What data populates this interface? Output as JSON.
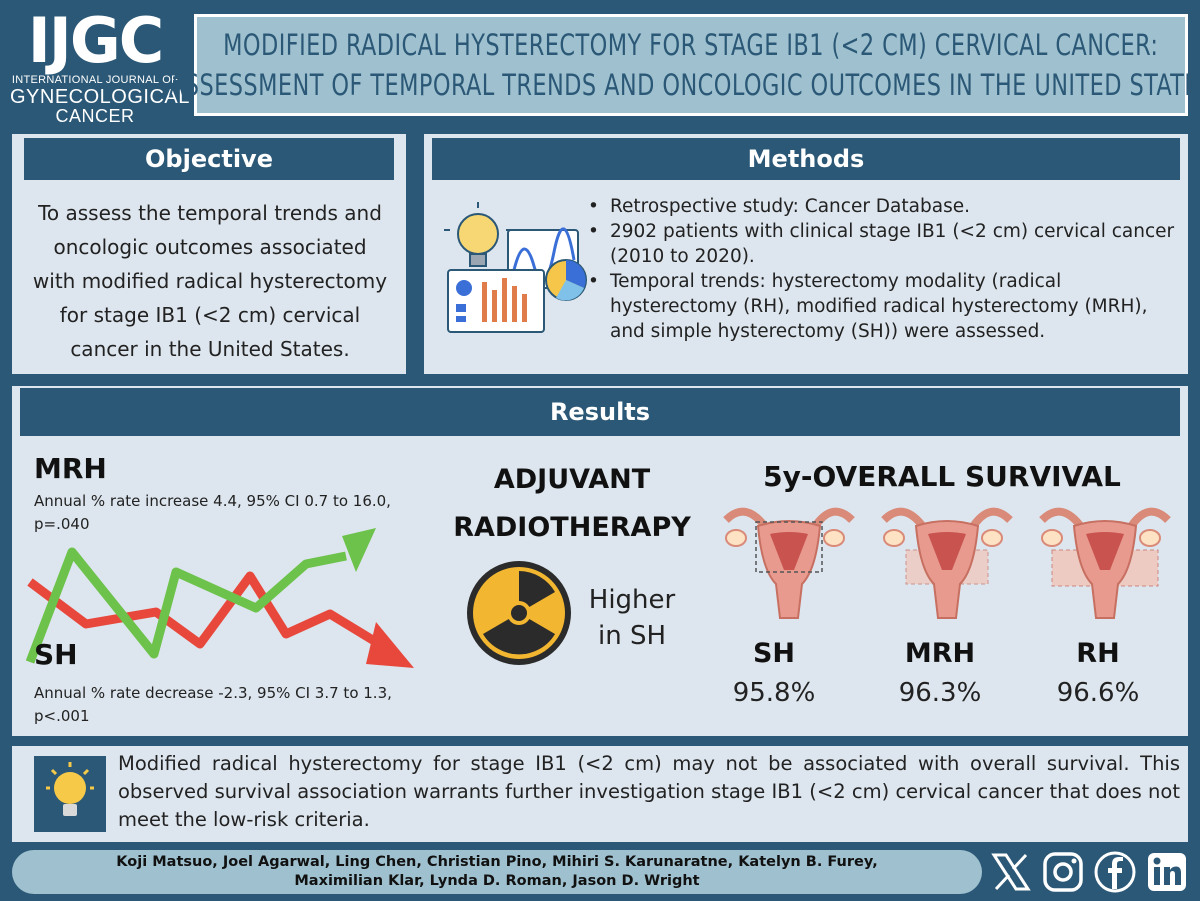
{
  "header": {
    "logo": {
      "acronym": "IJGC",
      "line1": "INTERNATIONAL JOURNAL OF",
      "line2": "GYNECOLOGICAL",
      "line3": "CANCER"
    },
    "title_line1": "MODIFIED RADICAL HYSTERECTOMY FOR STAGE IB1 (<2 CM) CERVICAL CANCER:",
    "title_line2": "ASSESSMENT OF TEMPORAL TRENDS AND ONCOLOGIC OUTCOMES IN THE UNITED STATES"
  },
  "objective": {
    "heading": "Objective",
    "text": "To assess the temporal trends and oncologic outcomes associated with modified radical hysterectomy for stage IB1 (<2 cm) cervical cancer in the United States."
  },
  "methods": {
    "heading": "Methods",
    "items": [
      "Retrospective study: Cancer Database.",
      "2902 patients with clinical stage IB1 (<2 cm) cervical cancer (2010 to 2020).",
      "Temporal trends: hysterectomy modality (radical hysterectomy (RH), modified radical hysterectomy (MRH), and simple hysterectomy (SH)) were assessed."
    ]
  },
  "results": {
    "heading": "Results",
    "mrh_label": "MRH",
    "mrh_text": "Annual % rate increase 4.4, 95% CI 0.7 to 16.0, p=.040",
    "sh_label": "SH",
    "sh_text": "Annual % rate decrease -2.3, 95% CI 3.7 to 1.3, p<.001",
    "trend_colors": {
      "increase": "#6cc24a",
      "decrease": "#e8483b"
    },
    "adjuvant_line1": "ADJUVANT",
    "adjuvant_line2": "RADIOTHERAPY",
    "adjuvant_result_line1": "Higher",
    "adjuvant_result_line2": "in SH",
    "survival_heading": "5y-OVERALL SURVIVAL",
    "survival": [
      {
        "label": "SH",
        "value": "95.8%"
      },
      {
        "label": "MRH",
        "value": "96.3%"
      },
      {
        "label": "RH",
        "value": "96.6%"
      }
    ]
  },
  "conclusion": {
    "icon": "lightbulb-icon",
    "text": "Modified radical hysterectomy for stage IB1 (<2 cm) may not be associated with overall survival. This observed survival association warrants further investigation stage IB1 (<2 cm) cervical cancer that does not meet the low-risk criteria."
  },
  "footer": {
    "authors_line1": "Koji Matsuo, Joel Agarwal, Ling Chen, Christian Pino, Mihiri S. Karunaratne, Katelyn B. Furey,",
    "authors_line2": "Maximilian Klar, Lynda D. Roman, Jason D. Wright",
    "social_icons": [
      "x-icon",
      "instagram-icon",
      "facebook-icon",
      "linkedin-icon"
    ]
  }
}
